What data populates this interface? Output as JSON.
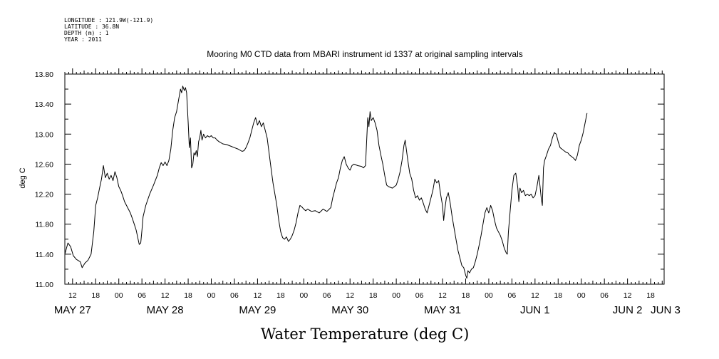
{
  "header": {
    "meta_lines": [
      "LONGITUDE : 121.9W(-121.9)",
      "LATITUDE : 36.8N",
      "DEPTH (m) : 1",
      "YEAR : 2011"
    ]
  },
  "chart_data": {
    "type": "line",
    "title": "Mooring M0 CTD data from MBARI instrument id 1337 at original sampling intervals",
    "xlabel": "Water Temperature (deg C)",
    "ylabel": "deg C",
    "ylim": [
      11.0,
      13.8
    ],
    "yticks": [
      "11.00",
      "11.40",
      "11.80",
      "12.20",
      "12.60",
      "13.00",
      "13.40",
      "13.80"
    ],
    "x_units": "hours since May 27 00:00",
    "xlim": [
      10,
      165.5
    ],
    "hour_ticks": [
      {
        "h": 12,
        "label": "12"
      },
      {
        "h": 18,
        "label": "18"
      },
      {
        "h": 24,
        "label": "00"
      },
      {
        "h": 30,
        "label": "06"
      },
      {
        "h": 36,
        "label": "12"
      },
      {
        "h": 42,
        "label": "18"
      },
      {
        "h": 48,
        "label": "00"
      },
      {
        "h": 54,
        "label": "06"
      },
      {
        "h": 60,
        "label": "12"
      },
      {
        "h": 66,
        "label": "18"
      },
      {
        "h": 72,
        "label": "00"
      },
      {
        "h": 78,
        "label": "06"
      },
      {
        "h": 84,
        "label": "12"
      },
      {
        "h": 90,
        "label": "18"
      },
      {
        "h": 96,
        "label": "00"
      },
      {
        "h": 102,
        "label": "06"
      },
      {
        "h": 108,
        "label": "12"
      },
      {
        "h": 114,
        "label": "18"
      },
      {
        "h": 120,
        "label": "00"
      },
      {
        "h": 126,
        "label": "06"
      },
      {
        "h": 132,
        "label": "12"
      },
      {
        "h": 138,
        "label": "18"
      },
      {
        "h": 144,
        "label": "00"
      },
      {
        "h": 150,
        "label": "06"
      },
      {
        "h": 156,
        "label": "12"
      },
      {
        "h": 162,
        "label": "18"
      }
    ],
    "day_labels": [
      {
        "h": 12,
        "label": "MAY 27"
      },
      {
        "h": 36,
        "label": "MAY 28"
      },
      {
        "h": 60,
        "label": "MAY 29"
      },
      {
        "h": 84,
        "label": "MAY 30"
      },
      {
        "h": 108,
        "label": "MAY 31"
      },
      {
        "h": 132,
        "label": "JUN  1"
      },
      {
        "h": 156,
        "label": "JUN  2"
      },
      {
        "h": 174,
        "label": "JUN  3"
      }
    ],
    "series": [
      {
        "color": "#000000",
        "points": [
          [
            10.0,
            11.4
          ],
          [
            10.8,
            11.55
          ],
          [
            11.5,
            11.5
          ],
          [
            12.2,
            11.38
          ],
          [
            13.0,
            11.33
          ],
          [
            14.0,
            11.3
          ],
          [
            14.5,
            11.22
          ],
          [
            15.2,
            11.28
          ],
          [
            16.0,
            11.32
          ],
          [
            16.8,
            11.4
          ],
          [
            17.5,
            11.7
          ],
          [
            18.0,
            12.05
          ],
          [
            18.5,
            12.15
          ],
          [
            19.0,
            12.28
          ],
          [
            19.5,
            12.4
          ],
          [
            20.0,
            12.58
          ],
          [
            20.5,
            12.42
          ],
          [
            21.0,
            12.48
          ],
          [
            21.5,
            12.4
          ],
          [
            22.0,
            12.45
          ],
          [
            22.5,
            12.38
          ],
          [
            23.0,
            12.5
          ],
          [
            23.5,
            12.42
          ],
          [
            24.0,
            12.3
          ],
          [
            24.5,
            12.25
          ],
          [
            25.0,
            12.18
          ],
          [
            25.5,
            12.1
          ],
          [
            26.0,
            12.05
          ],
          [
            26.5,
            12.0
          ],
          [
            27.0,
            11.95
          ],
          [
            27.5,
            11.88
          ],
          [
            28.0,
            11.8
          ],
          [
            28.5,
            11.72
          ],
          [
            29.0,
            11.6
          ],
          [
            29.3,
            11.53
          ],
          [
            29.7,
            11.55
          ],
          [
            30.0,
            11.72
          ],
          [
            30.3,
            11.9
          ],
          [
            31.0,
            12.05
          ],
          [
            32.0,
            12.2
          ],
          [
            33.0,
            12.32
          ],
          [
            34.0,
            12.45
          ],
          [
            34.5,
            12.55
          ],
          [
            35.0,
            12.62
          ],
          [
            35.5,
            12.58
          ],
          [
            36.0,
            12.63
          ],
          [
            36.5,
            12.58
          ],
          [
            37.0,
            12.65
          ],
          [
            37.5,
            12.8
          ],
          [
            38.0,
            13.05
          ],
          [
            38.5,
            13.22
          ],
          [
            39.0,
            13.3
          ],
          [
            39.5,
            13.45
          ],
          [
            40.0,
            13.6
          ],
          [
            40.3,
            13.55
          ],
          [
            40.6,
            13.64
          ],
          [
            41.0,
            13.58
          ],
          [
            41.3,
            13.62
          ],
          [
            41.6,
            13.55
          ],
          [
            42.0,
            13.15
          ],
          [
            42.3,
            12.82
          ],
          [
            42.6,
            12.95
          ],
          [
            42.9,
            12.55
          ],
          [
            43.2,
            12.6
          ],
          [
            43.5,
            12.75
          ],
          [
            43.8,
            12.72
          ],
          [
            44.1,
            12.78
          ],
          [
            44.4,
            12.7
          ],
          [
            44.7,
            12.9
          ],
          [
            45.0,
            12.95
          ],
          [
            45.3,
            13.05
          ],
          [
            45.6,
            12.92
          ],
          [
            46.0,
            13.0
          ],
          [
            46.5,
            12.95
          ],
          [
            47.0,
            12.98
          ],
          [
            47.5,
            12.96
          ],
          [
            48.0,
            12.98
          ],
          [
            48.5,
            12.95
          ],
          [
            49.0,
            12.95
          ],
          [
            49.5,
            12.92
          ],
          [
            50.0,
            12.9
          ],
          [
            51.0,
            12.87
          ],
          [
            52.0,
            12.86
          ],
          [
            53.0,
            12.84
          ],
          [
            54.0,
            12.82
          ],
          [
            55.0,
            12.8
          ],
          [
            56.0,
            12.77
          ],
          [
            56.5,
            12.78
          ],
          [
            57.0,
            12.82
          ],
          [
            57.5,
            12.88
          ],
          [
            58.0,
            12.95
          ],
          [
            58.5,
            13.05
          ],
          [
            59.0,
            13.15
          ],
          [
            59.5,
            13.22
          ],
          [
            60.0,
            13.12
          ],
          [
            60.5,
            13.18
          ],
          [
            61.0,
            13.1
          ],
          [
            61.5,
            13.15
          ],
          [
            62.0,
            13.05
          ],
          [
            62.5,
            12.95
          ],
          [
            63.0,
            12.75
          ],
          [
            63.5,
            12.55
          ],
          [
            64.0,
            12.35
          ],
          [
            64.5,
            12.2
          ],
          [
            65.0,
            12.05
          ],
          [
            65.5,
            11.85
          ],
          [
            66.0,
            11.7
          ],
          [
            66.5,
            11.62
          ],
          [
            67.0,
            11.6
          ],
          [
            67.5,
            11.63
          ],
          [
            68.0,
            11.57
          ],
          [
            68.5,
            11.6
          ],
          [
            69.0,
            11.65
          ],
          [
            69.5,
            11.72
          ],
          [
            70.0,
            11.82
          ],
          [
            70.5,
            11.95
          ],
          [
            71.0,
            12.05
          ],
          [
            71.5,
            12.03
          ],
          [
            72.0,
            12.0
          ],
          [
            72.5,
            11.98
          ],
          [
            73.0,
            12.0
          ],
          [
            74.0,
            11.97
          ],
          [
            75.0,
            11.98
          ],
          [
            76.0,
            11.95
          ],
          [
            77.0,
            12.0
          ],
          [
            78.0,
            11.97
          ],
          [
            79.0,
            12.02
          ],
          [
            79.5,
            12.15
          ],
          [
            80.0,
            12.25
          ],
          [
            80.5,
            12.35
          ],
          [
            81.0,
            12.42
          ],
          [
            81.5,
            12.55
          ],
          [
            82.0,
            12.65
          ],
          [
            82.5,
            12.7
          ],
          [
            83.0,
            12.6
          ],
          [
            83.5,
            12.55
          ],
          [
            84.0,
            12.52
          ],
          [
            84.5,
            12.58
          ],
          [
            85.0,
            12.6
          ],
          [
            86.0,
            12.58
          ],
          [
            87.0,
            12.57
          ],
          [
            87.5,
            12.55
          ],
          [
            88.0,
            12.58
          ],
          [
            88.3,
            12.9
          ],
          [
            88.6,
            13.22
          ],
          [
            88.9,
            13.1
          ],
          [
            89.2,
            13.3
          ],
          [
            89.5,
            13.18
          ],
          [
            90.0,
            13.22
          ],
          [
            90.5,
            13.15
          ],
          [
            91.0,
            13.05
          ],
          [
            91.5,
            12.85
          ],
          [
            92.0,
            12.72
          ],
          [
            92.5,
            12.6
          ],
          [
            93.0,
            12.45
          ],
          [
            93.5,
            12.32
          ],
          [
            94.0,
            12.3
          ],
          [
            95.0,
            12.28
          ],
          [
            96.0,
            12.32
          ],
          [
            96.5,
            12.4
          ],
          [
            97.0,
            12.5
          ],
          [
            97.5,
            12.65
          ],
          [
            98.0,
            12.85
          ],
          [
            98.3,
            12.92
          ],
          [
            98.6,
            12.8
          ],
          [
            99.0,
            12.65
          ],
          [
            99.5,
            12.48
          ],
          [
            100.0,
            12.4
          ],
          [
            100.5,
            12.25
          ],
          [
            101.0,
            12.15
          ],
          [
            101.5,
            12.18
          ],
          [
            102.0,
            12.12
          ],
          [
            102.5,
            12.15
          ],
          [
            103.0,
            12.08
          ],
          [
            103.5,
            12.0
          ],
          [
            104.0,
            11.95
          ],
          [
            104.5,
            12.05
          ],
          [
            105.0,
            12.15
          ],
          [
            105.5,
            12.25
          ],
          [
            106.0,
            12.4
          ],
          [
            106.5,
            12.35
          ],
          [
            107.0,
            12.38
          ],
          [
            107.5,
            12.2
          ],
          [
            108.0,
            12.05
          ],
          [
            108.3,
            11.85
          ],
          [
            108.6,
            12.0
          ],
          [
            109.0,
            12.15
          ],
          [
            109.5,
            12.22
          ],
          [
            110.0,
            12.08
          ],
          [
            110.5,
            11.9
          ],
          [
            111.0,
            11.75
          ],
          [
            111.5,
            11.6
          ],
          [
            112.0,
            11.45
          ],
          [
            112.5,
            11.35
          ],
          [
            113.0,
            11.25
          ],
          [
            113.5,
            11.22
          ],
          [
            114.0,
            11.12
          ],
          [
            114.3,
            11.08
          ],
          [
            114.6,
            11.18
          ],
          [
            115.0,
            11.15
          ],
          [
            115.5,
            11.2
          ],
          [
            116.0,
            11.22
          ],
          [
            116.5,
            11.3
          ],
          [
            117.0,
            11.4
          ],
          [
            117.5,
            11.52
          ],
          [
            118.0,
            11.65
          ],
          [
            118.5,
            11.8
          ],
          [
            119.0,
            11.95
          ],
          [
            119.5,
            12.02
          ],
          [
            120.0,
            11.95
          ],
          [
            120.5,
            12.05
          ],
          [
            121.0,
            11.98
          ],
          [
            121.5,
            11.85
          ],
          [
            122.0,
            11.75
          ],
          [
            122.5,
            11.7
          ],
          [
            123.0,
            11.65
          ],
          [
            123.5,
            11.58
          ],
          [
            124.0,
            11.48
          ],
          [
            124.5,
            11.42
          ],
          [
            124.8,
            11.4
          ],
          [
            125.1,
            11.7
          ],
          [
            125.5,
            11.95
          ],
          [
            126.0,
            12.25
          ],
          [
            126.5,
            12.45
          ],
          [
            127.0,
            12.48
          ],
          [
            127.5,
            12.3
          ],
          [
            127.8,
            12.1
          ],
          [
            128.1,
            12.28
          ],
          [
            128.5,
            12.22
          ],
          [
            129.0,
            12.25
          ],
          [
            129.5,
            12.18
          ],
          [
            130.0,
            12.2
          ],
          [
            130.5,
            12.18
          ],
          [
            131.0,
            12.2
          ],
          [
            131.5,
            12.15
          ],
          [
            132.0,
            12.18
          ],
          [
            132.5,
            12.3
          ],
          [
            133.0,
            12.45
          ],
          [
            133.3,
            12.3
          ],
          [
            133.6,
            12.15
          ],
          [
            133.9,
            12.05
          ],
          [
            134.2,
            12.55
          ],
          [
            134.5,
            12.65
          ],
          [
            135.0,
            12.72
          ],
          [
            135.5,
            12.8
          ],
          [
            136.0,
            12.85
          ],
          [
            136.5,
            12.95
          ],
          [
            137.0,
            13.02
          ],
          [
            137.5,
            13.0
          ],
          [
            138.0,
            12.9
          ],
          [
            138.5,
            12.82
          ],
          [
            139.0,
            12.8
          ],
          [
            139.5,
            12.78
          ],
          [
            140.0,
            12.76
          ],
          [
            140.5,
            12.75
          ],
          [
            141.0,
            12.72
          ],
          [
            141.5,
            12.7
          ],
          [
            142.0,
            12.68
          ],
          [
            142.5,
            12.65
          ],
          [
            143.0,
            12.72
          ],
          [
            143.5,
            12.85
          ],
          [
            144.0,
            12.92
          ],
          [
            144.5,
            13.02
          ],
          [
            145.0,
            13.15
          ],
          [
            145.5,
            13.28
          ]
        ]
      }
    ]
  }
}
